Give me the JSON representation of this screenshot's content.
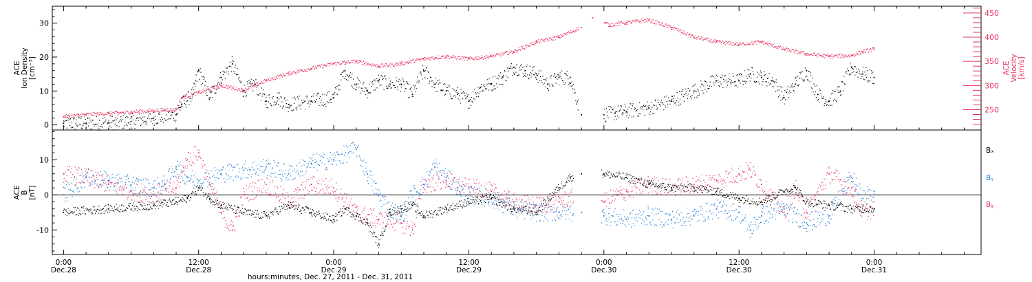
{
  "chart_data": {
    "type": "scatter",
    "xlabel": "hours:minutes, Dec. 27, 2011 - Dec. 31, 2011",
    "x_unit": "hours since Dec.28 00:00",
    "xlim": [
      -1,
      81.5
    ],
    "x_ticks": [
      {
        "x": 0,
        "time": "0:00",
        "date": "Dec.28"
      },
      {
        "x": 12,
        "time": "12:00",
        "date": "Dec.28"
      },
      {
        "x": 24,
        "time": "0:00",
        "date": "Dec.29"
      },
      {
        "x": 36,
        "time": "12:00",
        "date": "Dec.29"
      },
      {
        "x": 48,
        "time": "0:00",
        "date": "Dec.30"
      },
      {
        "x": 60,
        "time": "12:00",
        "date": "Dec.30"
      },
      {
        "x": 72,
        "time": "0:00",
        "date": "Dec.31"
      }
    ],
    "colors": {
      "black": "#000000",
      "blue": "#1b7bdc",
      "red": "#e8335e"
    },
    "panels": [
      {
        "id": "top",
        "left_axis": {
          "label_lines": [
            "ACE",
            "Ion Density",
            "[cm⁻³]"
          ],
          "ylim": [
            -1.5,
            35
          ],
          "ticks": [
            0,
            10,
            20,
            30
          ]
        },
        "right_axis": {
          "label_lines": [
            "ACE",
            "Velocity",
            "[km/s]"
          ],
          "ylim": [
            208,
            464
          ],
          "ticks": [
            250,
            300,
            350,
            400,
            450
          ]
        },
        "series": [
          {
            "name": "Ion Density",
            "axis": "left",
            "color": "black",
            "points": [
              [
                0,
                0.5
              ],
              [
                2,
                0.5
              ],
              [
                4,
                0.6
              ],
              [
                6,
                1
              ],
              [
                8,
                2
              ],
              [
                10,
                3
              ],
              [
                10.5,
                6
              ],
              [
                11.5,
                9
              ],
              [
                12,
                16
              ],
              [
                13,
                8
              ],
              [
                14,
                14
              ],
              [
                15,
                18
              ],
              [
                16,
                10
              ],
              [
                17,
                12
              ],
              [
                18,
                7
              ],
              [
                19,
                8
              ],
              [
                20,
                6
              ],
              [
                22,
                7
              ],
              [
                24,
                8
              ],
              [
                25,
                16
              ],
              [
                26,
                12
              ],
              [
                27,
                10
              ],
              [
                28,
                13
              ],
              [
                29,
                12
              ],
              [
                30,
                12
              ],
              [
                31,
                9
              ],
              [
                32,
                16
              ],
              [
                33,
                12
              ],
              [
                34,
                10
              ],
              [
                35,
                9
              ],
              [
                36,
                7
              ],
              [
                37,
                11
              ],
              [
                38,
                12
              ],
              [
                39,
                14
              ],
              [
                40,
                17
              ],
              [
                41,
                16
              ],
              [
                42,
                15
              ],
              [
                43,
                12
              ],
              [
                44,
                14
              ],
              [
                45,
                14
              ],
              [
                46,
                3
              ],
              [
                48,
                3
              ],
              [
                49,
                3.5
              ],
              [
                50,
                4
              ],
              [
                52,
                5
              ],
              [
                54,
                7
              ],
              [
                56,
                10
              ],
              [
                58,
                13
              ],
              [
                60,
                13
              ],
              [
                61,
                15
              ],
              [
                62,
                14
              ],
              [
                63,
                13
              ],
              [
                64,
                8
              ],
              [
                65,
                12
              ],
              [
                66,
                16
              ],
              [
                67,
                9
              ],
              [
                68,
                7
              ],
              [
                69,
                10
              ],
              [
                70,
                17
              ],
              [
                71,
                15
              ],
              [
                72,
                14
              ]
            ]
          },
          {
            "name": "Velocity",
            "axis": "right",
            "color": "red",
            "points": [
              [
                0,
                235
              ],
              [
                2,
                240
              ],
              [
                4,
                242
              ],
              [
                6,
                245
              ],
              [
                8,
                248
              ],
              [
                10,
                250
              ],
              [
                10.5,
                275
              ],
              [
                12,
                285
              ],
              [
                14,
                300
              ],
              [
                16,
                290
              ],
              [
                18,
                310
              ],
              [
                20,
                325
              ],
              [
                22,
                335
              ],
              [
                24,
                345
              ],
              [
                26,
                350
              ],
              [
                28,
                340
              ],
              [
                30,
                345
              ],
              [
                32,
                355
              ],
              [
                34,
                360
              ],
              [
                36,
                355
              ],
              [
                38,
                360
              ],
              [
                40,
                370
              ],
              [
                42,
                390
              ],
              [
                44,
                400
              ],
              [
                46,
                420
              ],
              [
                47,
                440
              ],
              [
                48.5,
                425
              ],
              [
                50,
                430
              ],
              [
                52,
                435
              ],
              [
                54,
                420
              ],
              [
                56,
                400
              ],
              [
                58,
                390
              ],
              [
                60,
                385
              ],
              [
                62,
                390
              ],
              [
                64,
                375
              ],
              [
                66,
                365
              ],
              [
                68,
                360
              ],
              [
                70,
                362
              ],
              [
                71,
                370
              ],
              [
                72,
                375
              ]
            ]
          }
        ]
      },
      {
        "id": "bottom",
        "left_axis": {
          "label_lines": [
            "ACE",
            "B",
            "[nT]"
          ],
          "ylim": [
            -17,
            18.5
          ],
          "ticks": [
            -10,
            0,
            10
          ]
        },
        "legend": [
          "Bₓ",
          "Bᵧ",
          "Bᵪ"
        ],
        "series": [
          {
            "name": "Bx",
            "color": "black",
            "points": [
              [
                0,
                -5
              ],
              [
                4,
                -4
              ],
              [
                8,
                -3
              ],
              [
                10,
                -2
              ],
              [
                11,
                -1
              ],
              [
                12,
                2
              ],
              [
                13,
                -1
              ],
              [
                14,
                -3
              ],
              [
                16,
                -5
              ],
              [
                18,
                -6
              ],
              [
                20,
                -3
              ],
              [
                22,
                -5
              ],
              [
                24,
                -7
              ],
              [
                25,
                -4
              ],
              [
                26,
                -6
              ],
              [
                27,
                -8
              ],
              [
                28,
                -14
              ],
              [
                29,
                -5
              ],
              [
                30,
                -4
              ],
              [
                31,
                -3
              ],
              [
                32,
                -6
              ],
              [
                34,
                -4
              ],
              [
                36,
                -2
              ],
              [
                38,
                -1
              ],
              [
                40,
                -4
              ],
              [
                42,
                -5
              ],
              [
                44,
                2
              ],
              [
                45,
                5
              ],
              [
                46,
                6
              ],
              [
                48,
                6
              ],
              [
                50,
                5
              ],
              [
                52,
                3
              ],
              [
                54,
                2
              ],
              [
                56,
                2
              ],
              [
                58,
                1
              ],
              [
                60,
                -1
              ],
              [
                62,
                -2
              ],
              [
                64,
                1
              ],
              [
                65,
                2
              ],
              [
                66,
                -2
              ],
              [
                68,
                -3
              ],
              [
                70,
                -4
              ],
              [
                72,
                -4
              ]
            ]
          },
          {
            "name": "By",
            "color": "blue",
            "points": [
              [
                0,
                0
              ],
              [
                2,
                5
              ],
              [
                4,
                4
              ],
              [
                6,
                3
              ],
              [
                8,
                2
              ],
              [
                9,
                3
              ],
              [
                10,
                8
              ],
              [
                11,
                5
              ],
              [
                12,
                4
              ],
              [
                14,
                6
              ],
              [
                16,
                7
              ],
              [
                18,
                8
              ],
              [
                20,
                6
              ],
              [
                22,
                9
              ],
              [
                24,
                10
              ],
              [
                26,
                13
              ],
              [
                27,
                6
              ],
              [
                28,
                0
              ],
              [
                29,
                -4
              ],
              [
                30,
                -6
              ],
              [
                31,
                0
              ],
              [
                32,
                3
              ],
              [
                33,
                8
              ],
              [
                34,
                5
              ],
              [
                35,
                2
              ],
              [
                36,
                0
              ],
              [
                38,
                -1
              ],
              [
                40,
                -4
              ],
              [
                42,
                -5
              ],
              [
                44,
                -5
              ],
              [
                46,
                -5
              ],
              [
                48,
                -6
              ],
              [
                50,
                -7
              ],
              [
                52,
                -6
              ],
              [
                54,
                -7
              ],
              [
                56,
                -6
              ],
              [
                58,
                -4
              ],
              [
                60,
                -5
              ],
              [
                61,
                -10
              ],
              [
                62,
                -6
              ],
              [
                64,
                -4
              ],
              [
                66,
                -8
              ],
              [
                68,
                -6
              ],
              [
                70,
                5
              ],
              [
                71,
                -1
              ],
              [
                72,
                1
              ]
            ]
          },
          {
            "name": "Bz",
            "color": "red",
            "points": [
              [
                0,
                6
              ],
              [
                2,
                5
              ],
              [
                4,
                3
              ],
              [
                6,
                1
              ],
              [
                8,
                0
              ],
              [
                10,
                2
              ],
              [
                11,
                10
              ],
              [
                12,
                12
              ],
              [
                13,
                3
              ],
              [
                14,
                -5
              ],
              [
                15,
                -10
              ],
              [
                16,
                0
              ],
              [
                18,
                3
              ],
              [
                20,
                -2
              ],
              [
                22,
                3
              ],
              [
                24,
                2
              ],
              [
                26,
                -5
              ],
              [
                28,
                -7
              ],
              [
                30,
                -8
              ],
              [
                31,
                -10
              ],
              [
                32,
                3
              ],
              [
                34,
                4
              ],
              [
                36,
                2
              ],
              [
                38,
                1
              ],
              [
                40,
                -2
              ],
              [
                42,
                -3
              ],
              [
                44,
                -2
              ],
              [
                46,
                0
              ],
              [
                48,
                -2
              ],
              [
                50,
                1
              ],
              [
                52,
                3
              ],
              [
                54,
                2
              ],
              [
                56,
                3
              ],
              [
                58,
                4
              ],
              [
                60,
                6
              ],
              [
                61,
                7
              ],
              [
                62,
                3
              ],
              [
                64,
                -5
              ],
              [
                65,
                2
              ],
              [
                66,
                -5
              ],
              [
                68,
                6
              ],
              [
                70,
                2
              ],
              [
                71,
                -5
              ],
              [
                72,
                -4
              ]
            ]
          }
        ]
      }
    ]
  }
}
